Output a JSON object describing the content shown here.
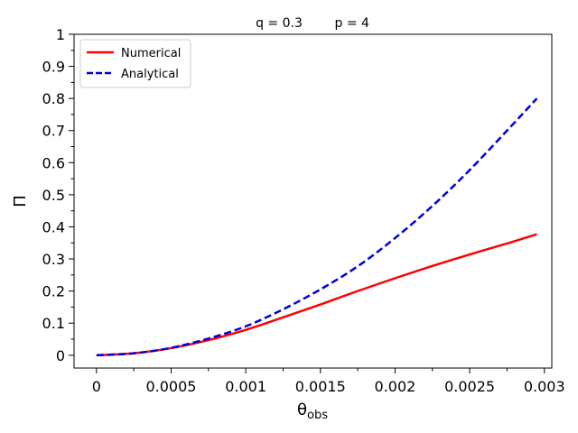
{
  "chart_data": {
    "type": "line",
    "title": "q = 0.3        p = 4",
    "xlabel_main": "θ",
    "xlabel_sub": "obs",
    "ylabel": "Π",
    "xlim": [
      -0.00015,
      0.00305
    ],
    "ylim": [
      -0.04,
      1.0
    ],
    "xticks": [
      0,
      0.0005,
      0.001,
      0.0015,
      0.002,
      0.0025,
      0.003
    ],
    "xtick_labels": [
      "0",
      "0.0005",
      "0.001",
      "0.0015",
      "0.002",
      "0.0025",
      "0.003"
    ],
    "yticks": [
      0,
      0.1,
      0.2,
      0.3,
      0.4,
      0.5,
      0.6,
      0.7,
      0.8,
      0.9,
      1
    ],
    "ytick_labels": [
      "0",
      "0.1",
      "0.2",
      "0.3",
      "0.4",
      "0.5",
      "0.6",
      "0.7",
      "0.8",
      "0.9",
      "1"
    ],
    "legend_position": "top-left",
    "series": [
      {
        "name": "Numerical",
        "color": "#ff0000",
        "style": "solid",
        "x": [
          0,
          0.00025,
          0.0005,
          0.00075,
          0.001,
          0.00125,
          0.0015,
          0.00175,
          0.002,
          0.00225,
          0.0025,
          0.00275,
          0.00295
        ],
        "y": [
          0,
          0.006,
          0.022,
          0.047,
          0.079,
          0.118,
          0.158,
          0.2,
          0.24,
          0.278,
          0.314,
          0.348,
          0.377
        ]
      },
      {
        "name": "Analytical",
        "color": "#0000dd",
        "style": "dashed",
        "x": [
          0,
          0.00025,
          0.0005,
          0.00075,
          0.001,
          0.00125,
          0.0015,
          0.00175,
          0.002,
          0.00225,
          0.0025,
          0.00275,
          0.00295
        ],
        "y": [
          0,
          0.006,
          0.023,
          0.052,
          0.09,
          0.143,
          0.205,
          0.277,
          0.365,
          0.465,
          0.577,
          0.7,
          0.8
        ]
      }
    ]
  }
}
